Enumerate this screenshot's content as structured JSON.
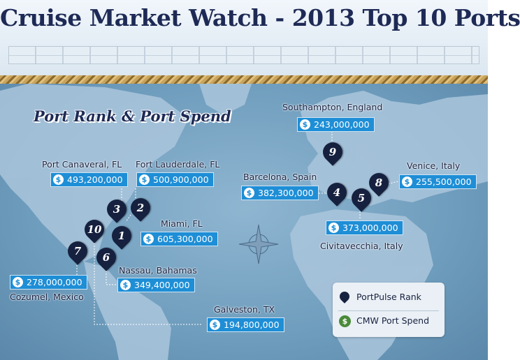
{
  "title": "Cruise Market Watch - 2013 Top 10 Ports",
  "section_title": "Port Rank & Port Spend",
  "currency_symbol": "$",
  "ports": [
    {
      "name": "Port Canaveral, FL",
      "spend": "493,200,000",
      "rank": "3"
    },
    {
      "name": "Fort Lauderdale, FL",
      "spend": "500,900,000",
      "rank": "2"
    },
    {
      "name": "Miami, FL",
      "spend": "605,300,000",
      "rank": "1"
    },
    {
      "name": "Nassau, Bahamas",
      "spend": "349,400,000",
      "rank": "6"
    },
    {
      "name": "Cozumel, Mexico",
      "spend": "278,000,000",
      "rank": "7"
    },
    {
      "name": "Galveston, TX",
      "spend": "194,800,000",
      "rank": "10"
    },
    {
      "name": "Southampton, England",
      "spend": "243,000,000",
      "rank": "9"
    },
    {
      "name": "Barcelona, Spain",
      "spend": "382,300,000",
      "rank": "4"
    },
    {
      "name": "Venice, Italy",
      "spend": "255,500,000",
      "rank": "8"
    },
    {
      "name": "Civitavecchia, Italy",
      "spend": "373,000,000",
      "rank": "5"
    }
  ],
  "legend": {
    "rank_label": "PortPulse Rank",
    "spend_label": "CMW Port Spend"
  },
  "colors": {
    "title": "#1e2a55",
    "pin": "#16213f",
    "spend_box": "#1e8ed6",
    "legend_spend_icon": "#4a8a3a",
    "ocean": "#6f9fbf"
  },
  "icons": [
    "map-pin-icon",
    "dollar-coin-icon",
    "compass-rose-icon"
  ]
}
